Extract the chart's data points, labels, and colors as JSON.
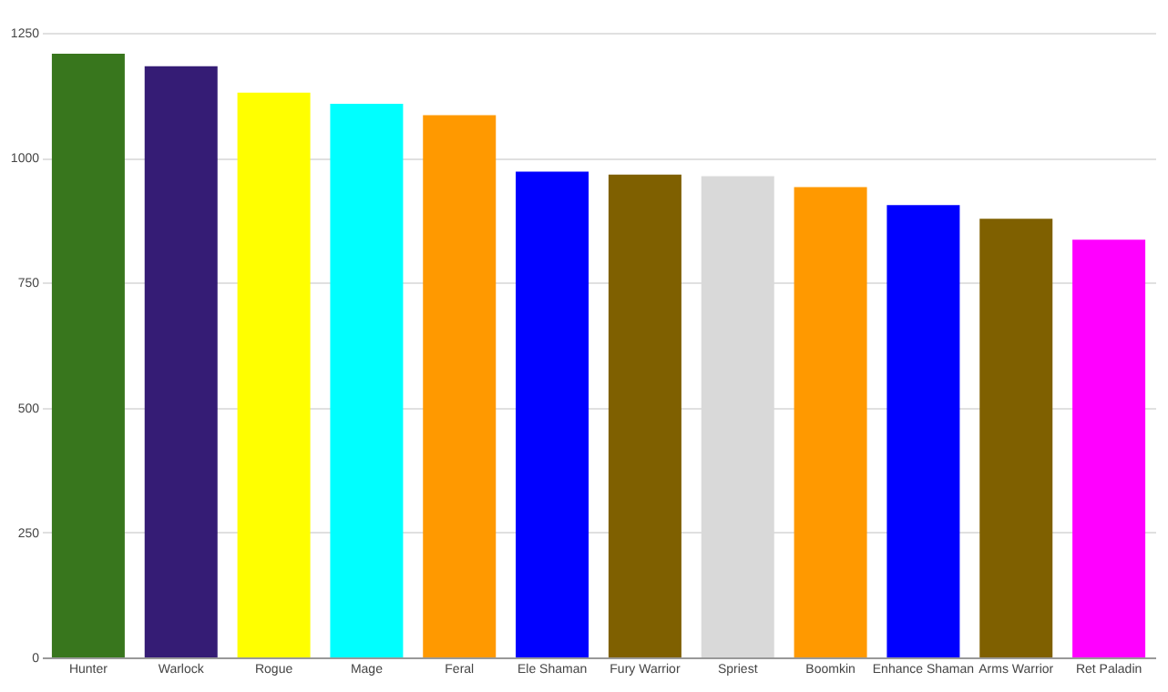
{
  "chart_data": {
    "type": "bar",
    "categories": [
      "Hunter",
      "Warlock",
      "Rogue",
      "Mage",
      "Feral",
      "Ele Shaman",
      "Fury Warrior",
      "Spriest",
      "Boomkin",
      "Enhance Shaman",
      "Arms Warrior",
      "Ret Paladin"
    ],
    "values": [
      1208,
      1183,
      1130,
      1108,
      1085,
      972,
      966,
      963,
      941,
      905,
      878,
      836
    ],
    "colors": [
      "#38761d",
      "#351c75",
      "#ffff00",
      "#00ffff",
      "#ff9900",
      "#0000ff",
      "#7f6000",
      "#d9d9d9",
      "#ff9900",
      "#0000ff",
      "#7f6000",
      "#ff00ff"
    ],
    "ylim": [
      0,
      1250
    ],
    "yticks": [
      0,
      250,
      500,
      750,
      1000,
      1250
    ],
    "grid": "y"
  }
}
